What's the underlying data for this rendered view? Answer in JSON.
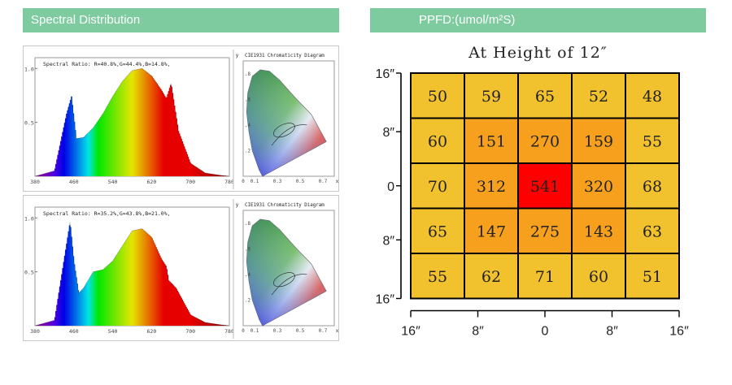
{
  "spectral_section": {
    "title": "Spectral Distribution",
    "panels": [
      {
        "ratio_text": "Spectral Ratio:  R=40.8%,G=44.4%,B=14.8%,",
        "cie_title": "CIE1931 Chromaticity Diagram"
      },
      {
        "ratio_text": "Spectral Ratio:  R=35.2%,G=43.8%,B=21.0%,",
        "cie_title": "CIE1931 Chromaticity Diagram"
      }
    ]
  },
  "ppfd_section": {
    "title": "PPFD:(umol/m²S)"
  },
  "chart_data": [
    {
      "type": "line",
      "x": [
        380,
        420,
        445,
        455,
        465,
        480,
        500,
        520,
        540,
        560,
        580,
        600,
        620,
        640,
        650,
        660,
        675,
        700,
        730,
        760,
        780
      ],
      "values": [
        0,
        0.05,
        0.58,
        0.74,
        0.35,
        0.36,
        0.45,
        0.58,
        0.74,
        0.88,
        0.98,
        1.0,
        0.93,
        0.8,
        0.72,
        0.86,
        0.42,
        0.12,
        0.03,
        0.01,
        0
      ],
      "xticks": [
        "380",
        "460",
        "540",
        "620",
        "700",
        "780"
      ],
      "yticks": [
        "1.0",
        "0.5"
      ],
      "xlim": [
        380,
        780
      ],
      "ylim": [
        0,
        1.1
      ],
      "inset": {
        "type": "scatter",
        "title": "CIE1931 Chromaticity Diagram",
        "xticks": [
          "0",
          "0.1",
          "0.3",
          "0.5",
          "0.7"
        ],
        "yticks": [
          ".8",
          ".6",
          ".4",
          ".2"
        ],
        "xlabel": "x",
        "ylabel": "y"
      }
    },
    {
      "type": "line",
      "x": [
        380,
        420,
        440,
        452,
        460,
        470,
        480,
        500,
        520,
        540,
        560,
        580,
        600,
        620,
        640,
        650,
        655,
        670,
        700,
        730,
        760,
        780
      ],
      "values": [
        0,
        0.05,
        0.62,
        0.96,
        0.6,
        0.3,
        0.35,
        0.5,
        0.52,
        0.6,
        0.74,
        0.88,
        0.9,
        0.82,
        0.62,
        0.55,
        0.42,
        0.35,
        0.1,
        0.03,
        0.01,
        0
      ],
      "xticks": [
        "380",
        "460",
        "540",
        "620",
        "700",
        "780"
      ],
      "yticks": [
        "1.0",
        "0.5"
      ],
      "xlim": [
        380,
        780
      ],
      "ylim": [
        0,
        1.1
      ],
      "inset": {
        "type": "scatter",
        "title": "CIE1931 Chromaticity Diagram",
        "xticks": [
          "0",
          "0.1",
          "0.3",
          "0.5",
          "0.7"
        ],
        "yticks": [
          ".8",
          ".6",
          ".4",
          ".2"
        ],
        "xlabel": "x",
        "ylabel": "y"
      }
    },
    {
      "type": "heatmap",
      "title": "At Height of 12″",
      "rows": [
        "16″",
        "8″",
        "0",
        "8″",
        "16″"
      ],
      "cols": [
        "16″",
        "8″",
        "0",
        "8″",
        "16″"
      ],
      "values": [
        [
          50,
          59,
          65,
          52,
          48
        ],
        [
          60,
          151,
          270,
          159,
          55
        ],
        [
          70,
          312,
          541,
          320,
          68
        ],
        [
          65,
          147,
          275,
          143,
          63
        ],
        [
          55,
          62,
          71,
          60,
          51
        ]
      ],
      "colors": {
        "low": "#f2c12e",
        "mid": "#f7a01d",
        "high": "#ff0000"
      }
    }
  ]
}
